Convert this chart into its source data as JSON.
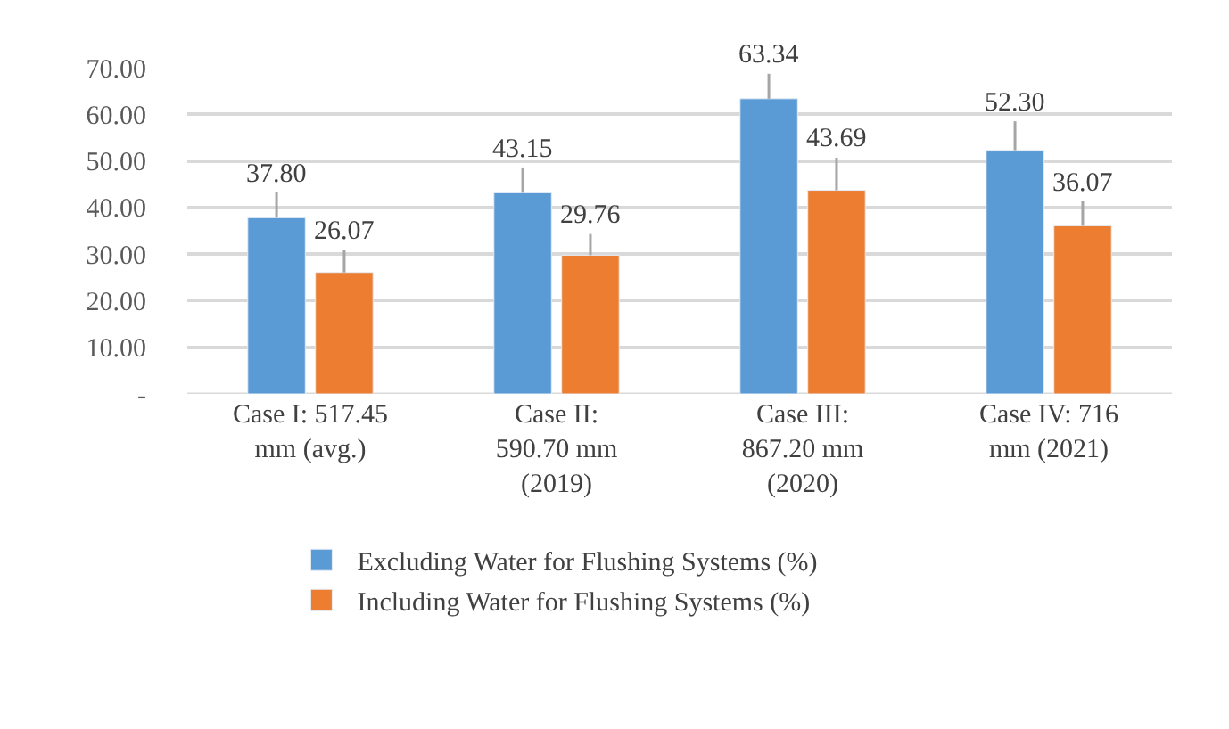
{
  "chart_data": {
    "type": "bar",
    "categories": [
      "Case I: 517.45 mm (avg.)",
      "Case II: 590.70 mm (2019)",
      "Case III: 867.20 mm (2020)",
      "Case IV: 716 mm (2021)"
    ],
    "series": [
      {
        "name": "Excluding Water for Flushing Systems (%)",
        "color": "#5b9bd5",
        "values": [
          37.8,
          43.15,
          63.34,
          52.3
        ],
        "value_labels": [
          "37.80",
          "43.15",
          "63.34",
          "52.30"
        ],
        "errors": [
          [
            37.8,
            43.3
          ],
          [
            43.15,
            48.6
          ],
          [
            63.34,
            68.7
          ],
          [
            52.3,
            58.5
          ]
        ]
      },
      {
        "name": "Including Water for Flushing Systems (%)",
        "color": "#ed7d31",
        "values": [
          26.07,
          29.76,
          43.69,
          36.07
        ],
        "value_labels": [
          "26.07",
          "29.76",
          "43.69",
          "36.07"
        ],
        "errors": [
          [
            26.07,
            30.8
          ],
          [
            29.76,
            34.3
          ],
          [
            43.69,
            50.7
          ],
          [
            36.07,
            41.4
          ]
        ]
      }
    ],
    "ylim": [
      0,
      70
    ],
    "yticks": [
      {
        "value": 0,
        "label": "-"
      },
      {
        "value": 10,
        "label": "10.00"
      },
      {
        "value": 20,
        "label": "20.00"
      },
      {
        "value": 30,
        "label": "30.00"
      },
      {
        "value": 40,
        "label": "40.00"
      },
      {
        "value": 50,
        "label": "50.00"
      },
      {
        "value": 60,
        "label": "60.00"
      },
      {
        "value": 70,
        "label": "70.00"
      }
    ],
    "grid": "y",
    "legend": "bottom"
  }
}
